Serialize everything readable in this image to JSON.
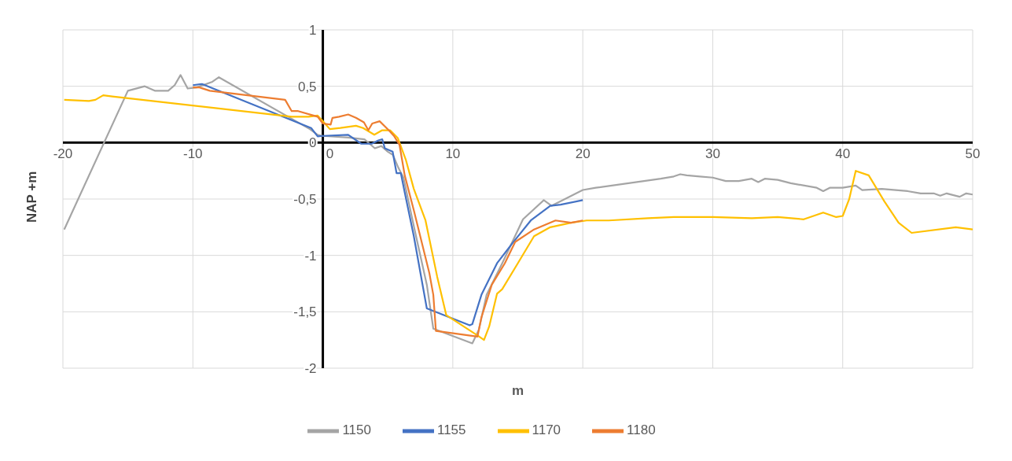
{
  "chart_data": {
    "type": "line",
    "xlabel": "m",
    "ylabel": "NAP +m",
    "xlim": [
      -20,
      50
    ],
    "xticks": [
      -20,
      -10,
      0,
      10,
      20,
      30,
      40,
      50
    ],
    "ylim": [
      -2,
      1
    ],
    "yticks": [
      1,
      {
        "value": 0.5,
        "label": "0,5"
      },
      0,
      {
        "value": -0.5,
        "label": "-0,5"
      },
      -1,
      {
        "value": -1.5,
        "label": "-1,5"
      },
      -2
    ],
    "grid": true,
    "legend": "bottom",
    "marker": "none",
    "line_style": "solid",
    "series": [
      {
        "name": "1150",
        "color": "#a5a5a5",
        "x": [
          -19.9,
          -15,
          -13.7,
          -12.9,
          -11.9,
          -11.4,
          -10.95,
          -10.4,
          -9.7,
          -8.5,
          -8,
          -1,
          -0.4,
          0,
          2,
          3.2,
          4,
          4.5,
          5,
          5.4,
          5.8,
          6.2,
          7,
          8,
          8.5,
          11.5,
          12,
          12.6,
          13.8,
          15.4,
          17,
          17.6,
          20,
          21,
          26,
          27,
          27.5,
          28,
          29,
          30,
          31,
          32,
          33,
          33.5,
          34,
          35,
          36,
          38,
          38.5,
          39,
          40,
          41,
          41.5,
          43,
          45,
          46,
          47,
          47.5,
          48,
          49,
          49.5,
          50
        ],
        "values": [
          -0.77,
          0.46,
          0.5,
          0.46,
          0.46,
          0.51,
          0.6,
          0.48,
          0.49,
          0.54,
          0.58,
          0.12,
          0.07,
          0.06,
          0.045,
          0.03,
          -0.05,
          -0.03,
          -0.08,
          -0.11,
          -0.22,
          -0.31,
          -0.74,
          -1.26,
          -1.65,
          -1.78,
          -1.66,
          -1.35,
          -1.07,
          -0.68,
          -0.51,
          -0.56,
          -0.42,
          -0.4,
          -0.32,
          -0.3,
          -0.28,
          -0.29,
          -0.3,
          -0.31,
          -0.34,
          -0.34,
          -0.32,
          -0.35,
          -0.32,
          -0.33,
          -0.36,
          -0.4,
          -0.43,
          -0.4,
          -0.4,
          -0.38,
          -0.42,
          -0.41,
          -0.43,
          -0.45,
          -0.45,
          -0.47,
          -0.45,
          -0.48,
          -0.45,
          -0.46
        ]
      },
      {
        "name": "1155",
        "color": "#4472c4",
        "x": [
          -10,
          -9.3,
          -0.9,
          -0.4,
          0,
          1.95,
          2.96,
          3.76,
          4.27,
          4.57,
          4.77,
          5.37,
          5.67,
          6,
          6.28,
          7,
          8,
          11.3,
          11.5,
          12.2,
          13.4,
          14.6,
          16,
          17.5,
          18.3,
          20
        ],
        "values": [
          0.51,
          0.52,
          0.13,
          0.055,
          0.06,
          0.07,
          -0.01,
          -0.01,
          0.02,
          0.03,
          -0.05,
          -0.08,
          -0.27,
          -0.27,
          -0.43,
          -0.83,
          -1.47,
          -1.62,
          -1.61,
          -1.35,
          -1.07,
          -0.89,
          -0.69,
          -0.56,
          -0.55,
          -0.51
        ]
      },
      {
        "name": "1170",
        "color": "#ffc000",
        "x": [
          -19.9,
          -18,
          -17.5,
          -16.9,
          -16.2,
          -2.4,
          -1.1,
          -0.4,
          0,
          0.54,
          1.35,
          2.55,
          3.1,
          3.96,
          4.57,
          5.17,
          5.77,
          6.38,
          7,
          7.9,
          8.8,
          9.5,
          11.9,
          12.4,
          12.8,
          13.4,
          13.8,
          15,
          16.25,
          17.5,
          19.1,
          20.3,
          22,
          25,
          27,
          30,
          33,
          35,
          37,
          38.5,
          39.5,
          40,
          40.5,
          41,
          42,
          43.2,
          44.3,
          45.3,
          48.7,
          50
        ],
        "values": [
          0.38,
          0.37,
          0.38,
          0.42,
          0.41,
          0.23,
          0.23,
          0.24,
          0.19,
          0.12,
          0.13,
          0.15,
          0.13,
          0.07,
          0.11,
          0.11,
          0.04,
          -0.15,
          -0.41,
          -0.69,
          -1.19,
          -1.53,
          -1.71,
          -1.75,
          -1.63,
          -1.34,
          -1.3,
          -1.07,
          -0.83,
          -0.75,
          -0.71,
          -0.69,
          -0.69,
          -0.67,
          -0.66,
          -0.66,
          -0.67,
          -0.66,
          -0.68,
          -0.62,
          -0.66,
          -0.65,
          -0.5,
          -0.25,
          -0.29,
          -0.52,
          -0.71,
          -0.8,
          -0.75,
          -0.77
        ]
      },
      {
        "name": "1180",
        "color": "#ed7d31",
        "x": [
          -10,
          -9.5,
          -8.7,
          -2.9,
          -2.4,
          -1.9,
          -0.4,
          0,
          0.6,
          0.74,
          1.25,
          1.95,
          2.55,
          3.16,
          3.5,
          3.8,
          4.37,
          5.07,
          5.47,
          5.9,
          6.3,
          7,
          8.2,
          8.5,
          8.7,
          11.9,
          12.2,
          13,
          14,
          14.8,
          16.25,
          17.9,
          19.1,
          20
        ],
        "values": [
          0.49,
          0.49,
          0.46,
          0.38,
          0.28,
          0.28,
          0.23,
          0.17,
          0.16,
          0.22,
          0.23,
          0.25,
          0.22,
          0.18,
          0.11,
          0.17,
          0.19,
          0.11,
          0.06,
          -0.02,
          -0.29,
          -0.6,
          -1.16,
          -1.35,
          -1.67,
          -1.72,
          -1.55,
          -1.26,
          -1.07,
          -0.88,
          -0.77,
          -0.69,
          -0.71,
          -0.69
        ]
      }
    ]
  }
}
